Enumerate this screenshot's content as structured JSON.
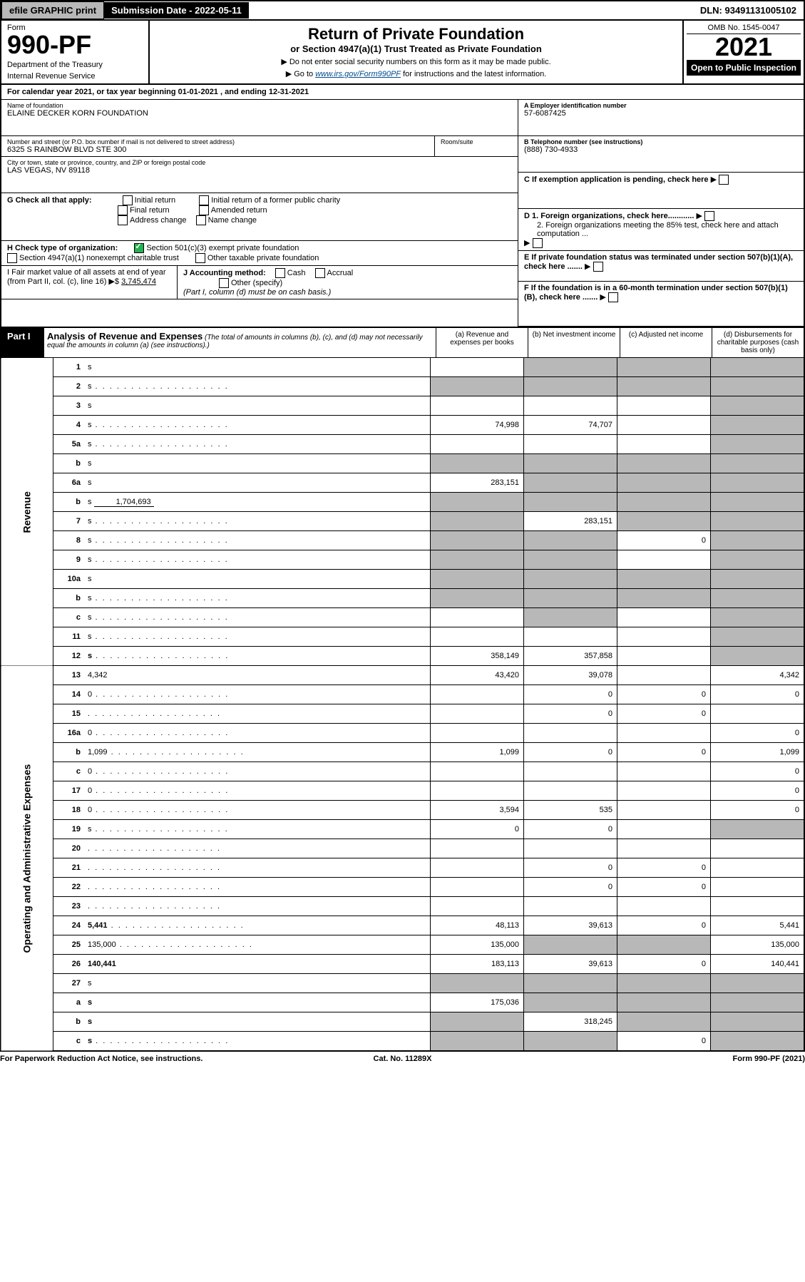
{
  "topbar": {
    "efile": "efile GRAPHIC print",
    "sub_label": "Submission Date - 2022-05-11",
    "dln": "DLN: 93491131005102"
  },
  "header": {
    "form_word": "Form",
    "form_no": "990-PF",
    "dept": "Department of the Treasury",
    "irs": "Internal Revenue Service",
    "title": "Return of Private Foundation",
    "subtitle": "or Section 4947(a)(1) Trust Treated as Private Foundation",
    "instr1": "▶ Do not enter social security numbers on this form as it may be made public.",
    "instr2_pre": "▶ Go to ",
    "instr2_link": "www.irs.gov/Form990PF",
    "instr2_post": " for instructions and the latest information.",
    "omb": "OMB No. 1545-0047",
    "year": "2021",
    "open": "Open to Public Inspection"
  },
  "cal": {
    "pre": "For calendar year 2021, or tax year beginning ",
    "begin": "01-01-2021",
    "mid": " , and ending ",
    "end": "12-31-2021"
  },
  "info": {
    "name_label": "Name of foundation",
    "name": "ELAINE DECKER KORN FOUNDATION",
    "addr_label": "Number and street (or P.O. box number if mail is not delivered to street address)",
    "addr": "6325 S RAINBOW BLVD STE 300",
    "room_label": "Room/suite",
    "city_label": "City or town, state or province, country, and ZIP or foreign postal code",
    "city": "LAS VEGAS, NV  89118",
    "ein_label": "A Employer identification number",
    "ein": "57-6087425",
    "tel_label": "B Telephone number (see instructions)",
    "tel": "(888) 730-4933",
    "c_label": "C If exemption application is pending, check here",
    "g_label": "G Check all that apply:",
    "g_opts": [
      "Initial return",
      "Final return",
      "Address change",
      "Initial return of a former public charity",
      "Amended return",
      "Name change"
    ],
    "d1": "D 1. Foreign organizations, check here............",
    "d2": "2. Foreign organizations meeting the 85% test, check here and attach computation ...",
    "h_label": "H Check type of organization:",
    "h_opt1": "Section 501(c)(3) exempt private foundation",
    "h_opt2": "Section 4947(a)(1) nonexempt charitable trust",
    "h_opt3": "Other taxable private foundation",
    "e_label": "E If private foundation status was terminated under section 507(b)(1)(A), check here .......",
    "i_label": "I Fair market value of all assets at end of year (from Part II, col. (c), line 16) ▶$",
    "i_val": "3,745,474",
    "j_label": "J Accounting method:",
    "j_cash": "Cash",
    "j_accr": "Accrual",
    "j_other": "Other (specify)",
    "j_note": "(Part I, column (d) must be on cash basis.)",
    "f_label": "F If the foundation is in a 60-month termination under section 507(b)(1)(B), check here ......."
  },
  "part1": {
    "label": "Part I",
    "title": "Analysis of Revenue and Expenses",
    "note": "(The total of amounts in columns (b), (c), and (d) may not necessarily equal the amounts in column (a) (see instructions).)",
    "cols": {
      "a": "(a) Revenue and expenses per books",
      "b": "(b) Net investment income",
      "c": "(c) Adjusted net income",
      "d": "(d) Disbursements for charitable purposes (cash basis only)"
    }
  },
  "sides": {
    "rev": "Revenue",
    "exp": "Operating and Administrative Expenses"
  },
  "rows": [
    {
      "n": "1",
      "d": "s",
      "a": "",
      "b": "s",
      "c": "s"
    },
    {
      "n": "2",
      "d": "s",
      "dots": true,
      "a": "s",
      "b": "s",
      "c": "s"
    },
    {
      "n": "3",
      "d": "s",
      "a": "",
      "b": "",
      "c": ""
    },
    {
      "n": "4",
      "d": "s",
      "dots": true,
      "a": "74,998",
      "b": "74,707",
      "c": ""
    },
    {
      "n": "5a",
      "d": "s",
      "dots": true,
      "a": "",
      "b": "",
      "c": ""
    },
    {
      "n": "b",
      "d": "s",
      "a": "s",
      "b": "s",
      "c": "s"
    },
    {
      "n": "6a",
      "d": "s",
      "a": "283,151",
      "b": "s",
      "c": "s"
    },
    {
      "n": "b",
      "d": "s",
      "inline": "1,704,693",
      "a": "s",
      "b": "s",
      "c": "s"
    },
    {
      "n": "7",
      "d": "s",
      "dots": true,
      "a": "s",
      "b": "283,151",
      "c": "s"
    },
    {
      "n": "8",
      "d": "s",
      "dots": true,
      "a": "s",
      "b": "s",
      "c": "0"
    },
    {
      "n": "9",
      "d": "s",
      "dots": true,
      "a": "s",
      "b": "s",
      "c": ""
    },
    {
      "n": "10a",
      "d": "s",
      "a": "s",
      "b": "s",
      "c": "s"
    },
    {
      "n": "b",
      "d": "s",
      "dots": true,
      "a": "s",
      "b": "s",
      "c": "s"
    },
    {
      "n": "c",
      "d": "s",
      "dots": true,
      "a": "",
      "b": "s",
      "c": ""
    },
    {
      "n": "11",
      "d": "s",
      "dots": true,
      "a": "",
      "b": "",
      "c": ""
    },
    {
      "n": "12",
      "d": "s",
      "bold": true,
      "dots": true,
      "a": "358,149",
      "b": "357,858",
      "c": ""
    },
    {
      "n": "13",
      "d": "4,342",
      "a": "43,420",
      "b": "39,078",
      "c": ""
    },
    {
      "n": "14",
      "d": "0",
      "dots": true,
      "a": "",
      "b": "0",
      "c": "0"
    },
    {
      "n": "15",
      "d": "",
      "dots": true,
      "a": "",
      "b": "0",
      "c": "0"
    },
    {
      "n": "16a",
      "d": "0",
      "dots": true,
      "a": "",
      "b": "",
      "c": ""
    },
    {
      "n": "b",
      "d": "1,099",
      "dots": true,
      "a": "1,099",
      "b": "0",
      "c": "0"
    },
    {
      "n": "c",
      "d": "0",
      "dots": true,
      "a": "",
      "b": "",
      "c": ""
    },
    {
      "n": "17",
      "d": "0",
      "dots": true,
      "a": "",
      "b": "",
      "c": ""
    },
    {
      "n": "18",
      "d": "0",
      "dots": true,
      "a": "3,594",
      "b": "535",
      "c": ""
    },
    {
      "n": "19",
      "d": "s",
      "dots": true,
      "a": "0",
      "b": "0",
      "c": ""
    },
    {
      "n": "20",
      "d": "",
      "dots": true,
      "a": "",
      "b": "",
      "c": ""
    },
    {
      "n": "21",
      "d": "",
      "dots": true,
      "a": "",
      "b": "0",
      "c": "0"
    },
    {
      "n": "22",
      "d": "",
      "dots": true,
      "a": "",
      "b": "0",
      "c": "0"
    },
    {
      "n": "23",
      "d": "",
      "dots": true,
      "a": "",
      "b": "",
      "c": ""
    },
    {
      "n": "24",
      "d": "5,441",
      "bold": true,
      "dots": true,
      "a": "48,113",
      "b": "39,613",
      "c": "0"
    },
    {
      "n": "25",
      "d": "135,000",
      "dots": true,
      "a": "135,000",
      "b": "s",
      "c": "s"
    },
    {
      "n": "26",
      "d": "140,441",
      "bold": true,
      "a": "183,113",
      "b": "39,613",
      "c": "0"
    },
    {
      "n": "27",
      "d": "s",
      "a": "s",
      "b": "s",
      "c": "s"
    },
    {
      "n": "a",
      "d": "s",
      "bold": true,
      "a": "175,036",
      "b": "s",
      "c": "s"
    },
    {
      "n": "b",
      "d": "s",
      "bold": true,
      "a": "s",
      "b": "318,245",
      "c": "s"
    },
    {
      "n": "c",
      "d": "s",
      "bold": true,
      "dots": true,
      "a": "s",
      "b": "s",
      "c": "0"
    }
  ],
  "footer": {
    "pra": "For Paperwork Reduction Act Notice, see instructions.",
    "cat": "Cat. No. 11289X",
    "form": "Form 990-PF (2021)"
  }
}
